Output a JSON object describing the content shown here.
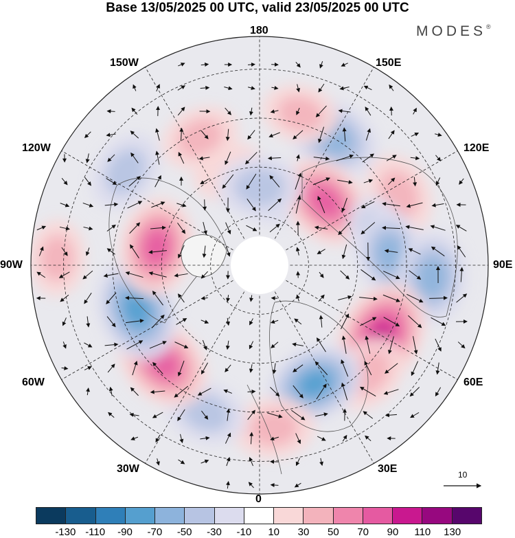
{
  "title": "Base 13/05/2025 00 UTC, valid 23/05/2025 00 UTC",
  "brand": "MODES",
  "brand_mark": "®",
  "longitude_labels": {
    "n180": "180",
    "w150": "150W",
    "e150": "150E",
    "w120": "120W",
    "e120": "120E",
    "w90": "90W",
    "e90": "90E",
    "w60": "60W",
    "e60": "60E",
    "w30": "30W",
    "e30": "30E",
    "s0": "0"
  },
  "vector_reference": {
    "label": "10",
    "icon": "arrow-right-icon"
  },
  "colorbar": {
    "colors": [
      "#0b3a5e",
      "#185d8e",
      "#2f7fb8",
      "#559fcf",
      "#8db3dc",
      "#b7c4e3",
      "#dcdcee",
      "#ffffff",
      "#f9d8d8",
      "#f3b3bc",
      "#ef85ac",
      "#e55aa1",
      "#c9188f",
      "#97087f",
      "#57066c"
    ],
    "ticks": [
      "-130",
      "-110",
      "-90",
      "-70",
      "-50",
      "-30",
      "-10",
      "10",
      "30",
      "50",
      "70",
      "90",
      "110",
      "130"
    ]
  },
  "anomaly_centers": [
    {
      "lon_deg": 150,
      "lat_deg": 45,
      "value": -65
    },
    {
      "lon_deg": 170,
      "lat_deg": 68,
      "value": -35
    },
    {
      "lon_deg": 165,
      "lat_deg": 42,
      "value": 30
    },
    {
      "lon_deg": 117,
      "lat_deg": 42,
      "value": 40
    },
    {
      "lon_deg": 134,
      "lat_deg": 62,
      "value": 70
    },
    {
      "lon_deg": 105,
      "lat_deg": 53,
      "value": -30
    },
    {
      "lon_deg": 95,
      "lat_deg": 50,
      "value": -50
    },
    {
      "lon_deg": 86,
      "lat_deg": 37,
      "value": -60
    },
    {
      "lon_deg": 60,
      "lat_deg": 47,
      "value": 90
    },
    {
      "lon_deg": 45,
      "lat_deg": 43,
      "value": 40
    },
    {
      "lon_deg": 25,
      "lat_deg": 50,
      "value": -70
    },
    {
      "lon_deg": 5,
      "lat_deg": 40,
      "value": 40
    },
    {
      "lon_deg": -20,
      "lat_deg": 42,
      "value": -40
    },
    {
      "lon_deg": -45,
      "lat_deg": 48,
      "value": 75
    },
    {
      "lon_deg": -70,
      "lat_deg": 50,
      "value": -80
    },
    {
      "lon_deg": -100,
      "lat_deg": 58,
      "value": 70
    },
    {
      "lon_deg": -92,
      "lat_deg": 28,
      "value": 30
    },
    {
      "lon_deg": -125,
      "lat_deg": 40,
      "value": -40
    },
    {
      "lon_deg": -155,
      "lat_deg": 47,
      "value": 35
    },
    {
      "lon_deg": -162,
      "lat_deg": 60,
      "value": 25
    },
    {
      "lon_deg": -180,
      "lat_deg": 66,
      "value": -45
    }
  ]
}
